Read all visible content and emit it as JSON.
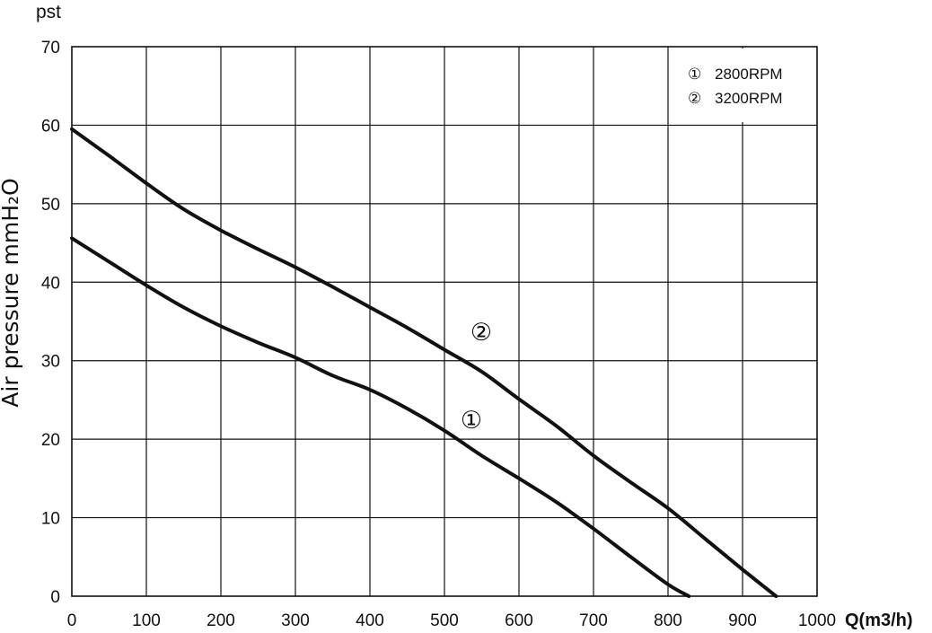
{
  "chart_data": {
    "type": "line",
    "y_unit_label": "pst",
    "ylabel": "Air pressure mmH₂O",
    "xlabel": "Q(m3/h)",
    "xlim": [
      0,
      1000
    ],
    "ylim": [
      0,
      70
    ],
    "x_ticks": [
      0,
      100,
      200,
      300,
      400,
      500,
      600,
      700,
      800,
      900,
      1000
    ],
    "y_ticks": [
      0,
      10,
      20,
      30,
      40,
      50,
      60,
      70
    ],
    "grid": true,
    "legend": {
      "placement": "top-right",
      "entries": [
        {
          "marker": "①",
          "text": "2800RPM"
        },
        {
          "marker": "②",
          "text": "3200RPM"
        }
      ]
    },
    "series": [
      {
        "name": "2800RPM",
        "marker": "①",
        "color": "#111111",
        "points": [
          [
            0,
            45.6
          ],
          [
            50,
            42.6
          ],
          [
            100,
            39.6
          ],
          [
            150,
            36.8
          ],
          [
            200,
            34.4
          ],
          [
            250,
            32.3
          ],
          [
            300,
            30.4
          ],
          [
            350,
            28.1
          ],
          [
            400,
            26.3
          ],
          [
            450,
            23.9
          ],
          [
            500,
            21.1
          ],
          [
            550,
            17.9
          ],
          [
            600,
            15.0
          ],
          [
            650,
            12.0
          ],
          [
            700,
            8.6
          ],
          [
            750,
            5.0
          ],
          [
            800,
            1.5
          ],
          [
            828,
            0
          ]
        ]
      },
      {
        "name": "3200RPM",
        "marker": "②",
        "color": "#111111",
        "points": [
          [
            0,
            59.5
          ],
          [
            50,
            56.1
          ],
          [
            100,
            52.6
          ],
          [
            150,
            49.3
          ],
          [
            200,
            46.6
          ],
          [
            250,
            44.2
          ],
          [
            300,
            41.9
          ],
          [
            350,
            39.4
          ],
          [
            400,
            36.8
          ],
          [
            450,
            34.2
          ],
          [
            500,
            31.4
          ],
          [
            550,
            28.6
          ],
          [
            600,
            25.1
          ],
          [
            650,
            21.7
          ],
          [
            700,
            17.9
          ],
          [
            750,
            14.5
          ],
          [
            800,
            11.2
          ],
          [
            850,
            7.3
          ],
          [
            900,
            3.4
          ],
          [
            945,
            0
          ]
        ]
      }
    ]
  }
}
